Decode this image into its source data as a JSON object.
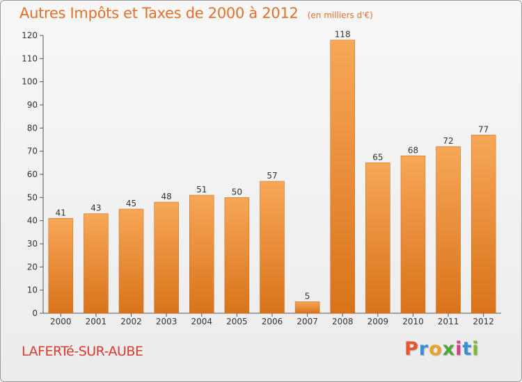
{
  "chart_data": {
    "type": "bar",
    "title": "Autres Impôts et Taxes de 2000 à 2012",
    "subtitle": "(en milliers d'€)",
    "categories": [
      "2000",
      "2001",
      "2002",
      "2003",
      "2004",
      "2005",
      "2006",
      "2007",
      "2008",
      "2009",
      "2010",
      "2011",
      "2012"
    ],
    "values": [
      41,
      43,
      45,
      48,
      51,
      50,
      57,
      5,
      118,
      65,
      68,
      72,
      77
    ],
    "ylim": [
      0,
      120
    ],
    "yticks": [
      0,
      10,
      20,
      30,
      40,
      50,
      60,
      70,
      80,
      90,
      100,
      110,
      120
    ],
    "grid": false,
    "bar_color_top": "#f7a757",
    "bar_color_bottom": "#d9731a"
  },
  "commune": "LAFERTé-SUR-AUBE",
  "logo": {
    "text": "Proxiti",
    "letter_colors": [
      "#e8562a",
      "#3b8fd6",
      "#e8a52a",
      "#4aa83a",
      "#d93a8a",
      "#3b8fd6",
      "#7ab83a"
    ]
  }
}
